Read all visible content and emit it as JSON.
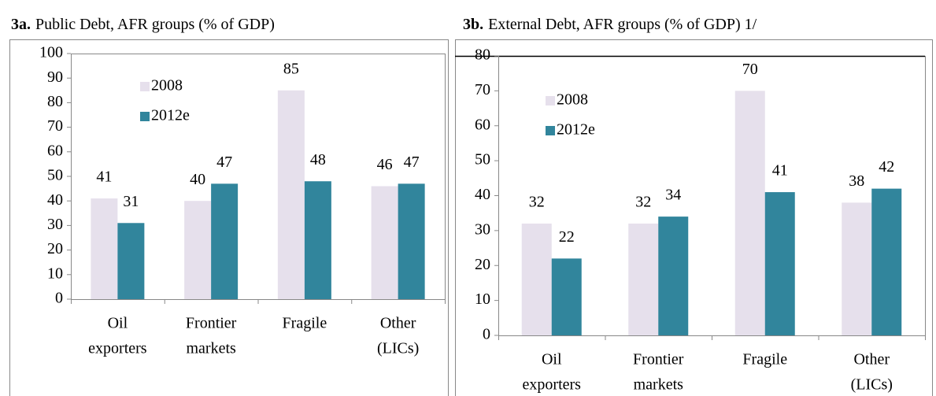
{
  "chart_data": [
    {
      "type": "bar",
      "title_label": "3a.",
      "title": "Public Debt, AFR groups (% of GDP)",
      "categories": [
        [
          "Oil",
          "exporters"
        ],
        [
          "Frontier",
          "markets"
        ],
        [
          "Fragile"
        ],
        [
          "Other",
          "(LICs)"
        ]
      ],
      "series": [
        {
          "name": "2008",
          "color": "#e6e0ec",
          "values": [
            41,
            40,
            85,
            46
          ]
        },
        {
          "name": "2012e",
          "color": "#31859c",
          "values": [
            31,
            47,
            48,
            47
          ]
        }
      ],
      "ylim": [
        0,
        100
      ],
      "yticks": [
        0,
        10,
        20,
        30,
        40,
        50,
        60,
        70,
        80,
        90,
        100
      ],
      "grid": false,
      "legend": "upper left"
    },
    {
      "type": "bar",
      "title_label": "3b.",
      "title": "External Debt, AFR groups (% of GDP) 1/",
      "categories": [
        [
          "Oil",
          "exporters"
        ],
        [
          "Frontier",
          "markets"
        ],
        [
          "Fragile"
        ],
        [
          "Other",
          "(LICs)"
        ]
      ],
      "series": [
        {
          "name": "2008",
          "color": "#e6e0ec",
          "values": [
            32,
            32,
            70,
            38
          ]
        },
        {
          "name": "2012e",
          "color": "#31859c",
          "values": [
            22,
            34,
            41,
            42
          ]
        }
      ],
      "ylim": [
        0,
        80
      ],
      "yticks": [
        0,
        10,
        20,
        30,
        40,
        50,
        60,
        70,
        80
      ],
      "grid": false,
      "legend": "upper left"
    }
  ]
}
